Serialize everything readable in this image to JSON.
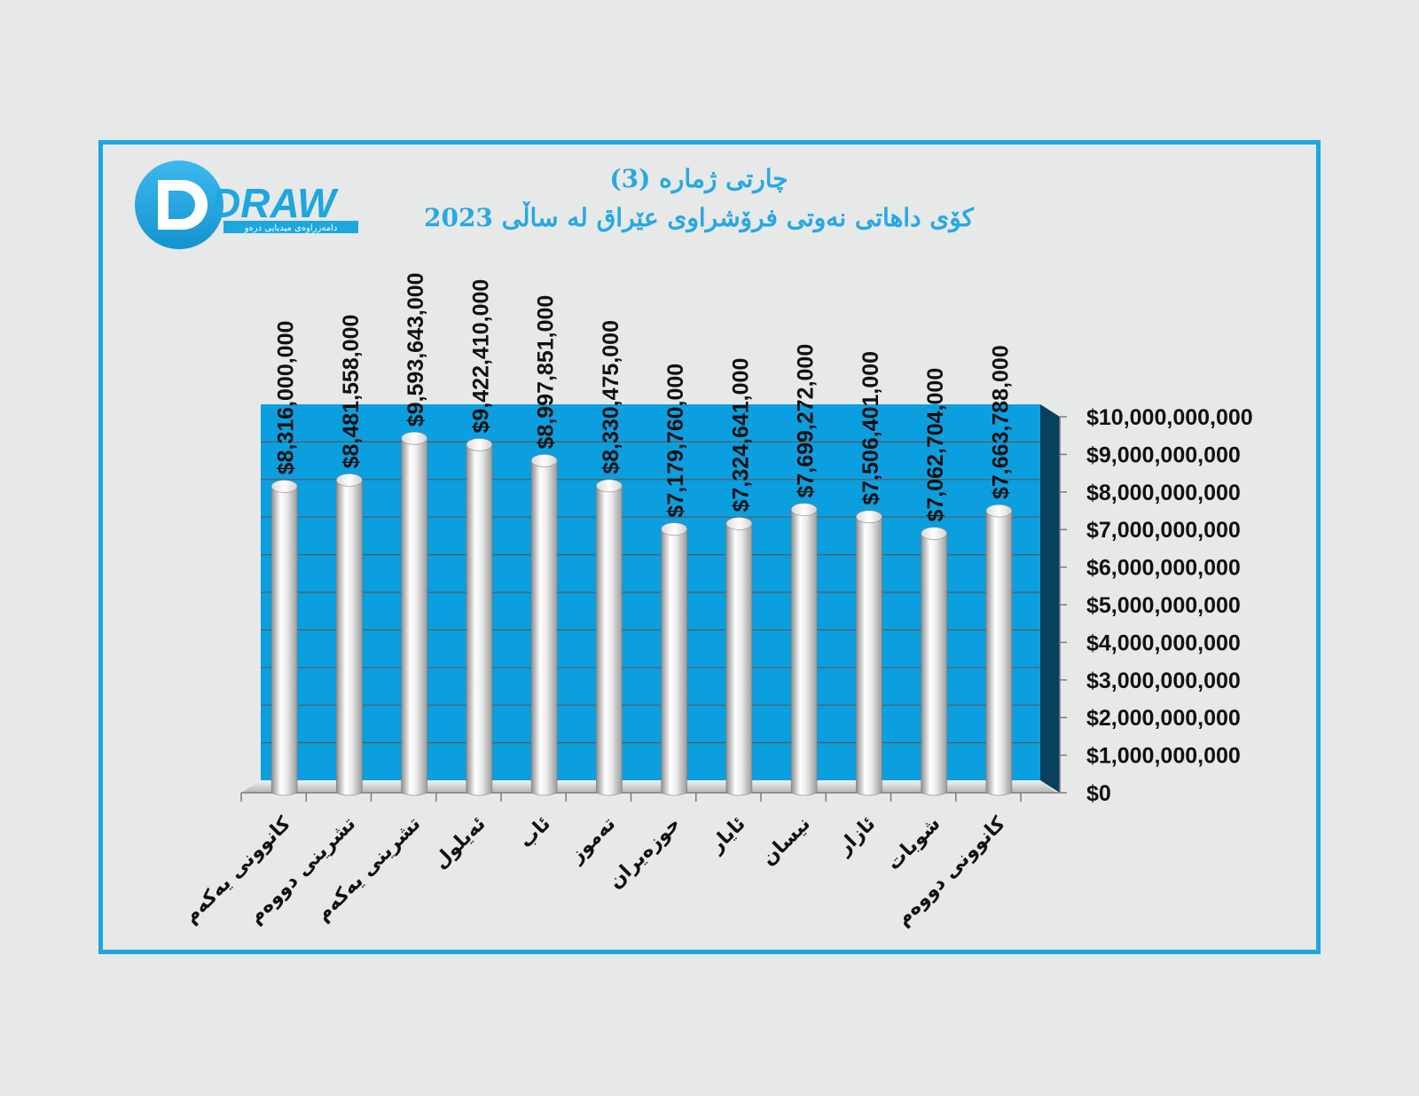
{
  "logo": {
    "text": "DRAW",
    "tagline": "دامەزراوەی میدیایی درەو",
    "colors": {
      "primary": "#1ea6df",
      "light": "#ffffff"
    }
  },
  "colors": {
    "frame": "#1ea6df",
    "plot_back": "#0b9fe0",
    "plot_side": "#0a3f5e",
    "title": "#27a9e1",
    "background": "#e7e8e8"
  },
  "chart_data": {
    "type": "bar",
    "title": "چارتی ژمارە (3)",
    "subtitle": "كۆی داهاتی  نەوتی فرۆشراوی عێراق  لە ساڵی 2023",
    "xlabel": "",
    "ylabel": "",
    "ylim": [
      0,
      10000000000
    ],
    "yticks": [
      "$0",
      "$1,000,000,000",
      "$2,000,000,000",
      "$3,000,000,000",
      "$4,000,000,000",
      "$5,000,000,000",
      "$6,000,000,000",
      "$7,000,000,000",
      "$8,000,000,000",
      "$9,000,000,000",
      "$10,000,000,000"
    ],
    "grid": true,
    "bar_style": "3d-cylinder",
    "categories": [
      "كانوونی یەكەم",
      "تشرینی دووەم",
      "تشرینی یەكەم",
      "ئەیلول",
      "ئاب",
      "تەموز",
      "حوزەیران",
      "ئایار",
      "نیسان",
      "ئازار",
      "شوبات",
      "كانوونی دووەم"
    ],
    "values": [
      8316000000,
      8481558000,
      9593643000,
      9422410000,
      8997851000,
      8330475000,
      7179760000,
      7324641000,
      7699272000,
      7506401000,
      7062704000,
      7663788000
    ],
    "value_labels": [
      "$8,316,000,000",
      "$8,481,558,000",
      "$9,593,643,000",
      "$9,422,410,000",
      "$8,997,851,000",
      "$8,330,475,000",
      "$7,179,760,000",
      "$7,324,641,000",
      "$7,699,272,000",
      "$7,506,401,000",
      "$7,062,704,000",
      "$7,663,788,000"
    ]
  }
}
